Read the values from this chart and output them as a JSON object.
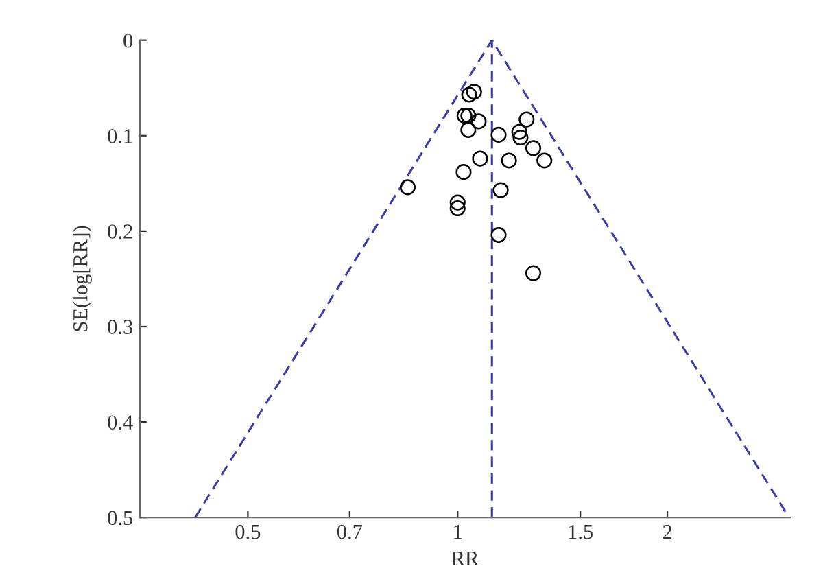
{
  "chart_data": {
    "type": "scatter",
    "xlabel": "RR",
    "ylabel": "SE(log[RR])",
    "log": "x",
    "xlim": [
      0.35,
      3.0
    ],
    "xticks": [
      0.5,
      0.7,
      1,
      1.5,
      2
    ],
    "ylim": [
      0.5,
      0
    ],
    "yticks": [
      0,
      0.1,
      0.2,
      0.3,
      0.4,
      0.5
    ],
    "grid": false,
    "legend": false,
    "marker": "circle",
    "ref_lines": [
      {
        "axis": "x",
        "value": 1.12,
        "color": "#3c3ca8",
        "line_style": "dashed"
      }
    ],
    "series": [
      {
        "color": "#000000",
        "x": [
          1.056,
          1.039,
          1.023,
          1.036,
          1.072,
          1.036,
          1.145,
          1.256,
          1.226,
          1.231,
          1.284,
          1.332,
          1.077,
          1.185,
          1.02,
          0.848,
          1.153,
          1.0,
          1.0,
          1.145,
          1.284
        ],
        "values": [
          0.054,
          0.057,
          0.079,
          0.079,
          0.085,
          0.094,
          0.099,
          0.083,
          0.096,
          0.102,
          0.113,
          0.126,
          0.124,
          0.126,
          0.138,
          0.154,
          0.157,
          0.17,
          0.176,
          0.204,
          0.244
        ]
      },
      {
        "type": "line",
        "color": "#3c3ca8",
        "line_style": "dashed",
        "marker": "none",
        "x": [
          0.42,
          1.12,
          2.99
        ],
        "values": [
          0.5,
          0,
          0.5
        ]
      }
    ]
  }
}
